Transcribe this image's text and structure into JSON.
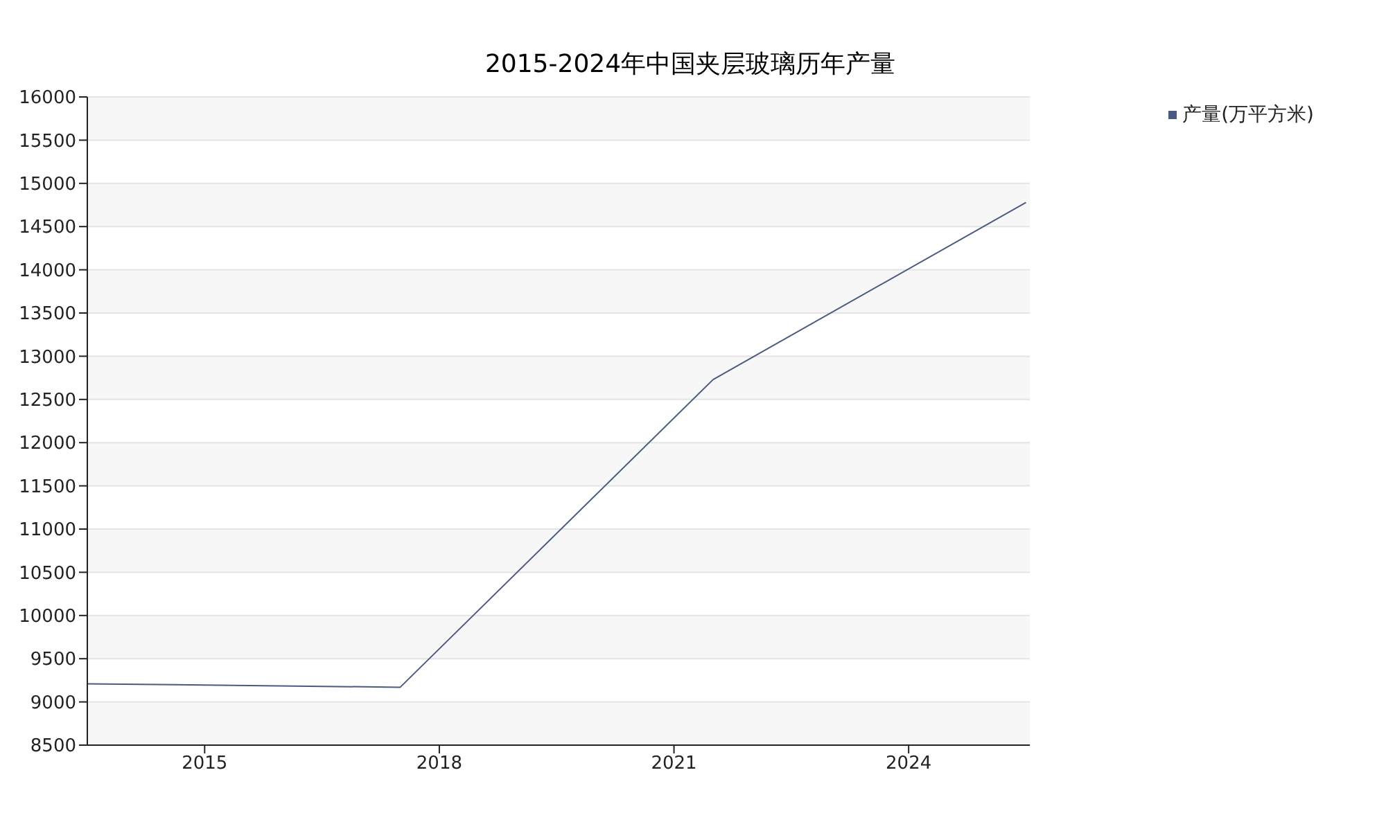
{
  "chart_data": {
    "type": "line",
    "title": "2015-2024年中国夹层玻璃历年产量",
    "x": [
      2013.5,
      2017.5,
      2021.5,
      2025.5
    ],
    "series": [
      {
        "name": "产量(万平方米)",
        "color": "#4a5a80",
        "values": [
          9210,
          9170,
          12730,
          14780
        ]
      }
    ],
    "xlim": [
      2013.5,
      2025.55
    ],
    "xticks": [
      2015,
      2018,
      2021,
      2024
    ],
    "ylim": [
      8500,
      16000
    ],
    "yticks": [
      8500,
      9000,
      9500,
      10000,
      10500,
      11000,
      11500,
      12000,
      12500,
      13000,
      13500,
      14000,
      14500,
      15000,
      15500,
      16000
    ],
    "grid": "y",
    "legend": "top right",
    "marker": "none",
    "line_style": "solid"
  }
}
